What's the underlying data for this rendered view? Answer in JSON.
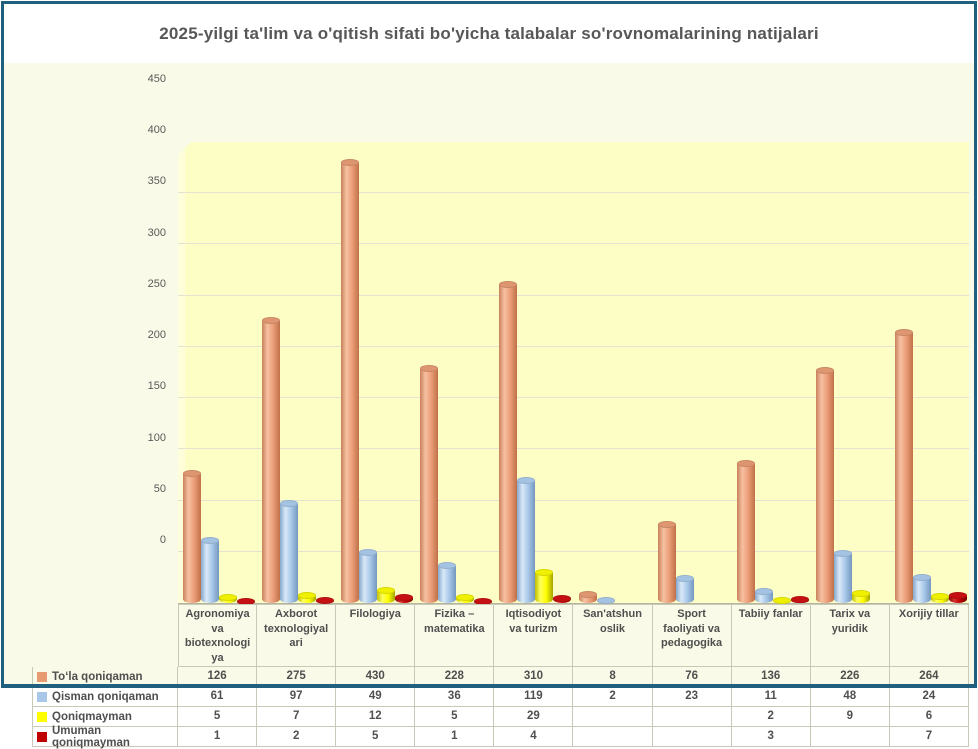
{
  "title": "2025-yilgi ta'lim va o'qitish sifati bo'yicha talabalar so'rovnomalarining natijalari",
  "colors": {
    "frame_border": "#20607E",
    "chart_background": "#FAFAE8",
    "plot_background": "#FDFDC6",
    "grid_line": "#E3E3D0",
    "table_border": "#C9C9B7",
    "text": "#4F4F4F",
    "axis_text": "#595959"
  },
  "chart_data": {
    "type": "bar",
    "subtype": "3d-cylinder",
    "title": "2025-yilgi ta'lim va o'qitish sifati bo'yicha talabalar so'rovnomalarining natijalari",
    "categories": [
      "Agronomiya va biotexnologiya",
      "Axborot texnologiyalari",
      "Filologiya",
      "Fizika – matematika",
      "Iqtisodiyot va turizm",
      "San'atshunoslik",
      "Sport faoliyati va pedagogika",
      "Tabiiy fanlar",
      "Tarix va yuridik",
      "Xorijiy tillar"
    ],
    "category_labels_wrapped": [
      "Agronomiya\nva\nbiotexnologi\nya",
      "Axborot\ntexnologiyal\nari",
      "Filologiya",
      "Fizika –\nmatematika",
      "Iqtisodiyot\nva turizm",
      "San'atshun\noslik",
      "Sport\nfaoliyati va\npedagogika",
      "Tabiiy fanlar",
      "Tarix va\nyuridik",
      "Xorijiy tillar"
    ],
    "series": [
      {
        "name": "Toʻla qoniqaman",
        "values": [
          126,
          275,
          430,
          228,
          310,
          8,
          76,
          136,
          226,
          264
        ],
        "swatch": "#E89B72",
        "fill": {
          "edge_left": "#C8805A",
          "highlight": "#F6C1A1",
          "mid": "#EC9E79",
          "edge_right": "#BF7048",
          "cap": "#DE9670"
        }
      },
      {
        "name": "Qisman qoniqaman",
        "values": [
          61,
          97,
          49,
          36,
          119,
          2,
          23,
          11,
          48,
          24
        ],
        "swatch": "#A9C7E8",
        "fill": {
          "edge_left": "#83A7CC",
          "highlight": "#D9E9F8",
          "mid": "#A9C8E9",
          "edge_right": "#7497BE",
          "cap": "#A4C3E3"
        }
      },
      {
        "name": "Qoniqmayman",
        "values": [
          5,
          7,
          12,
          5,
          29,
          null,
          null,
          2,
          9,
          6
        ],
        "swatch": "#FFFF00",
        "fill": {
          "edge_left": "#BEBE00",
          "highlight": "#FFFF5E",
          "mid": "#FFFF00",
          "edge_right": "#A3A300",
          "cap": "#EFEF00"
        }
      },
      {
        "name": "Umuman qoniqmayman",
        "values": [
          1,
          2,
          5,
          1,
          4,
          null,
          null,
          3,
          null,
          7
        ],
        "swatch": "#C00000",
        "fill": {
          "edge_left": "#8E0A0A",
          "highlight": "#D63030",
          "mid": "#C00000",
          "edge_right": "#6F0000",
          "cap": "#C51111"
        }
      }
    ],
    "ylim": [
      0,
      450
    ],
    "yticks": [
      0,
      50,
      100,
      150,
      200,
      250,
      300,
      350,
      400,
      450
    ],
    "grid": "horizontal",
    "legend_position": "table-below",
    "xlabel": "",
    "ylabel": ""
  }
}
